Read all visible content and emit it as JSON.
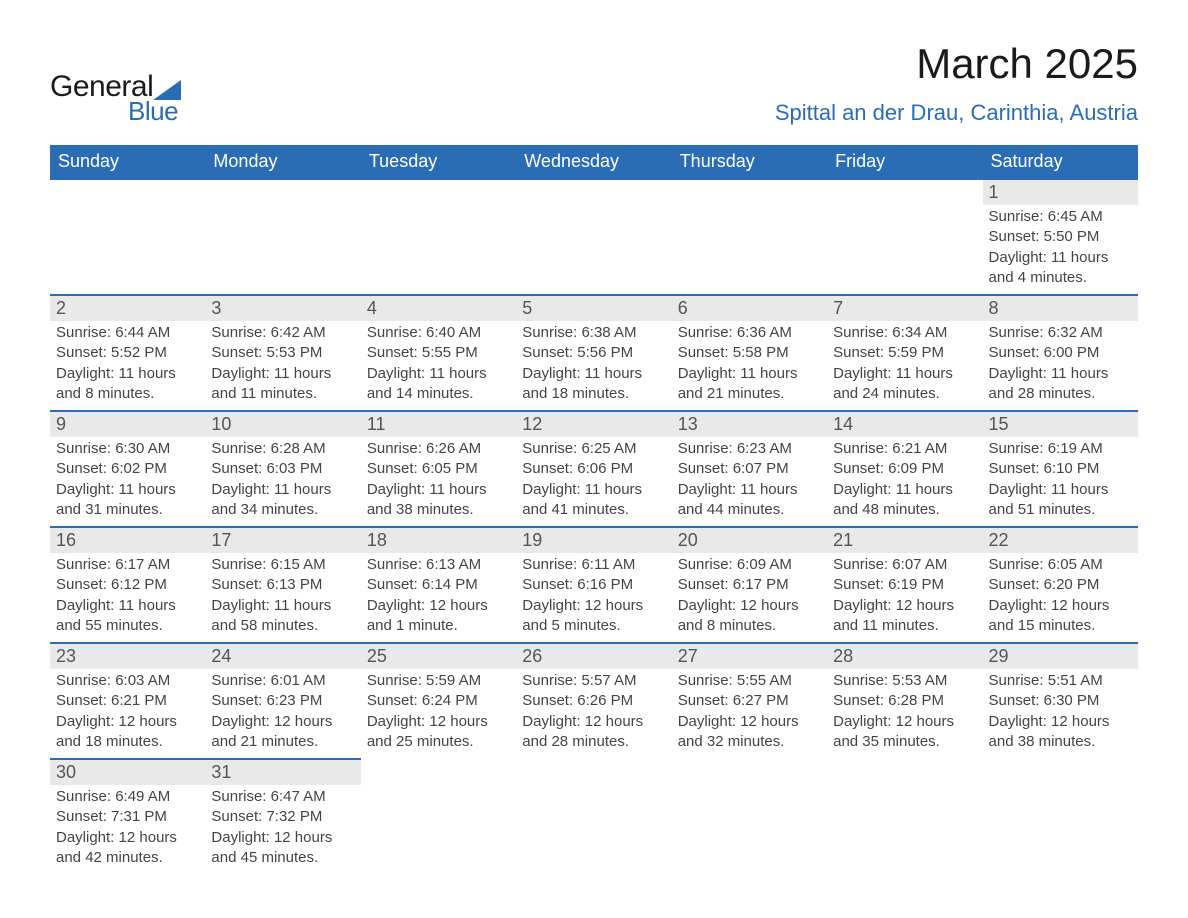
{
  "logo": {
    "text1": "General",
    "text2": "Blue",
    "accent_color": "#2a6db5"
  },
  "title": "March 2025",
  "location": "Spittal an der Drau, Carinthia, Austria",
  "colors": {
    "header_bg": "#2a6db5",
    "header_text": "#ffffff",
    "row_rule": "#2a6db5",
    "daynum_bg": "#e9e9e9",
    "body_text": "#444444",
    "title_text": "#1a1a1a",
    "location_text": "#2a6db5"
  },
  "columns": [
    "Sunday",
    "Monday",
    "Tuesday",
    "Wednesday",
    "Thursday",
    "Friday",
    "Saturday"
  ],
  "weeks": [
    [
      null,
      null,
      null,
      null,
      null,
      null,
      {
        "n": "1",
        "sr": "Sunrise: 6:45 AM",
        "ss": "Sunset: 5:50 PM",
        "dl1": "Daylight: 11 hours",
        "dl2": "and 4 minutes."
      }
    ],
    [
      {
        "n": "2",
        "sr": "Sunrise: 6:44 AM",
        "ss": "Sunset: 5:52 PM",
        "dl1": "Daylight: 11 hours",
        "dl2": "and 8 minutes."
      },
      {
        "n": "3",
        "sr": "Sunrise: 6:42 AM",
        "ss": "Sunset: 5:53 PM",
        "dl1": "Daylight: 11 hours",
        "dl2": "and 11 minutes."
      },
      {
        "n": "4",
        "sr": "Sunrise: 6:40 AM",
        "ss": "Sunset: 5:55 PM",
        "dl1": "Daylight: 11 hours",
        "dl2": "and 14 minutes."
      },
      {
        "n": "5",
        "sr": "Sunrise: 6:38 AM",
        "ss": "Sunset: 5:56 PM",
        "dl1": "Daylight: 11 hours",
        "dl2": "and 18 minutes."
      },
      {
        "n": "6",
        "sr": "Sunrise: 6:36 AM",
        "ss": "Sunset: 5:58 PM",
        "dl1": "Daylight: 11 hours",
        "dl2": "and 21 minutes."
      },
      {
        "n": "7",
        "sr": "Sunrise: 6:34 AM",
        "ss": "Sunset: 5:59 PM",
        "dl1": "Daylight: 11 hours",
        "dl2": "and 24 minutes."
      },
      {
        "n": "8",
        "sr": "Sunrise: 6:32 AM",
        "ss": "Sunset: 6:00 PM",
        "dl1": "Daylight: 11 hours",
        "dl2": "and 28 minutes."
      }
    ],
    [
      {
        "n": "9",
        "sr": "Sunrise: 6:30 AM",
        "ss": "Sunset: 6:02 PM",
        "dl1": "Daylight: 11 hours",
        "dl2": "and 31 minutes."
      },
      {
        "n": "10",
        "sr": "Sunrise: 6:28 AM",
        "ss": "Sunset: 6:03 PM",
        "dl1": "Daylight: 11 hours",
        "dl2": "and 34 minutes."
      },
      {
        "n": "11",
        "sr": "Sunrise: 6:26 AM",
        "ss": "Sunset: 6:05 PM",
        "dl1": "Daylight: 11 hours",
        "dl2": "and 38 minutes."
      },
      {
        "n": "12",
        "sr": "Sunrise: 6:25 AM",
        "ss": "Sunset: 6:06 PM",
        "dl1": "Daylight: 11 hours",
        "dl2": "and 41 minutes."
      },
      {
        "n": "13",
        "sr": "Sunrise: 6:23 AM",
        "ss": "Sunset: 6:07 PM",
        "dl1": "Daylight: 11 hours",
        "dl2": "and 44 minutes."
      },
      {
        "n": "14",
        "sr": "Sunrise: 6:21 AM",
        "ss": "Sunset: 6:09 PM",
        "dl1": "Daylight: 11 hours",
        "dl2": "and 48 minutes."
      },
      {
        "n": "15",
        "sr": "Sunrise: 6:19 AM",
        "ss": "Sunset: 6:10 PM",
        "dl1": "Daylight: 11 hours",
        "dl2": "and 51 minutes."
      }
    ],
    [
      {
        "n": "16",
        "sr": "Sunrise: 6:17 AM",
        "ss": "Sunset: 6:12 PM",
        "dl1": "Daylight: 11 hours",
        "dl2": "and 55 minutes."
      },
      {
        "n": "17",
        "sr": "Sunrise: 6:15 AM",
        "ss": "Sunset: 6:13 PM",
        "dl1": "Daylight: 11 hours",
        "dl2": "and 58 minutes."
      },
      {
        "n": "18",
        "sr": "Sunrise: 6:13 AM",
        "ss": "Sunset: 6:14 PM",
        "dl1": "Daylight: 12 hours",
        "dl2": "and 1 minute."
      },
      {
        "n": "19",
        "sr": "Sunrise: 6:11 AM",
        "ss": "Sunset: 6:16 PM",
        "dl1": "Daylight: 12 hours",
        "dl2": "and 5 minutes."
      },
      {
        "n": "20",
        "sr": "Sunrise: 6:09 AM",
        "ss": "Sunset: 6:17 PM",
        "dl1": "Daylight: 12 hours",
        "dl2": "and 8 minutes."
      },
      {
        "n": "21",
        "sr": "Sunrise: 6:07 AM",
        "ss": "Sunset: 6:19 PM",
        "dl1": "Daylight: 12 hours",
        "dl2": "and 11 minutes."
      },
      {
        "n": "22",
        "sr": "Sunrise: 6:05 AM",
        "ss": "Sunset: 6:20 PM",
        "dl1": "Daylight: 12 hours",
        "dl2": "and 15 minutes."
      }
    ],
    [
      {
        "n": "23",
        "sr": "Sunrise: 6:03 AM",
        "ss": "Sunset: 6:21 PM",
        "dl1": "Daylight: 12 hours",
        "dl2": "and 18 minutes."
      },
      {
        "n": "24",
        "sr": "Sunrise: 6:01 AM",
        "ss": "Sunset: 6:23 PM",
        "dl1": "Daylight: 12 hours",
        "dl2": "and 21 minutes."
      },
      {
        "n": "25",
        "sr": "Sunrise: 5:59 AM",
        "ss": "Sunset: 6:24 PM",
        "dl1": "Daylight: 12 hours",
        "dl2": "and 25 minutes."
      },
      {
        "n": "26",
        "sr": "Sunrise: 5:57 AM",
        "ss": "Sunset: 6:26 PM",
        "dl1": "Daylight: 12 hours",
        "dl2": "and 28 minutes."
      },
      {
        "n": "27",
        "sr": "Sunrise: 5:55 AM",
        "ss": "Sunset: 6:27 PM",
        "dl1": "Daylight: 12 hours",
        "dl2": "and 32 minutes."
      },
      {
        "n": "28",
        "sr": "Sunrise: 5:53 AM",
        "ss": "Sunset: 6:28 PM",
        "dl1": "Daylight: 12 hours",
        "dl2": "and 35 minutes."
      },
      {
        "n": "29",
        "sr": "Sunrise: 5:51 AM",
        "ss": "Sunset: 6:30 PM",
        "dl1": "Daylight: 12 hours",
        "dl2": "and 38 minutes."
      }
    ],
    [
      {
        "n": "30",
        "sr": "Sunrise: 6:49 AM",
        "ss": "Sunset: 7:31 PM",
        "dl1": "Daylight: 12 hours",
        "dl2": "and 42 minutes."
      },
      {
        "n": "31",
        "sr": "Sunrise: 6:47 AM",
        "ss": "Sunset: 7:32 PM",
        "dl1": "Daylight: 12 hours",
        "dl2": "and 45 minutes."
      },
      null,
      null,
      null,
      null,
      null
    ]
  ]
}
